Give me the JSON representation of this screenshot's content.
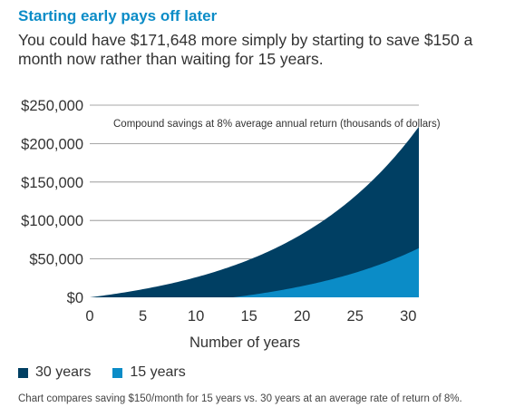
{
  "header": {
    "title": "Starting early pays off later",
    "subtitle": "You could have $171,648 more simply by starting to save $150 a month now rather than waiting for 15 years."
  },
  "footnote": "Chart compares saving $150/month for 15 years vs. 30 years at an average rate of return of 8%.",
  "colors": {
    "series_30": "#003f63",
    "series_15": "#0b8cc7",
    "title": "#0b8cc7",
    "grid": "#8a8a8a",
    "text": "#333333"
  },
  "chart_data": {
    "type": "area",
    "annotation": "Compound savings at 8% average annual return (thousands of dollars)",
    "xlabel": "Number of years",
    "ylabel": "",
    "xlim": [
      0,
      31
    ],
    "ylim": [
      0,
      250000
    ],
    "x_ticks": [
      0,
      5,
      10,
      15,
      20,
      25,
      30
    ],
    "x_tick_labels": [
      "0",
      "5",
      "10",
      "15",
      "20",
      "25",
      "30"
    ],
    "y_ticks": [
      0,
      50000,
      100000,
      150000,
      200000,
      250000
    ],
    "y_tick_labels": [
      "$0",
      "$50,000",
      "$100,000",
      "$150,000",
      "$200,000",
      "$250,000"
    ],
    "grid": "horizontal",
    "legend_position": "bottom-left",
    "x": [
      0,
      5,
      10,
      15,
      20,
      25,
      30,
      31
    ],
    "series": [
      {
        "name": "30 years",
        "color": "#003f63",
        "values": [
          0,
          11000,
          27500,
          52000,
          88500,
          142500,
          223500,
          223500
        ]
      },
      {
        "name": "15 years",
        "color": "#0b8cc7",
        "values": [
          0,
          0,
          0,
          0,
          11000,
          27500,
          52000,
          60000
        ]
      }
    ]
  }
}
